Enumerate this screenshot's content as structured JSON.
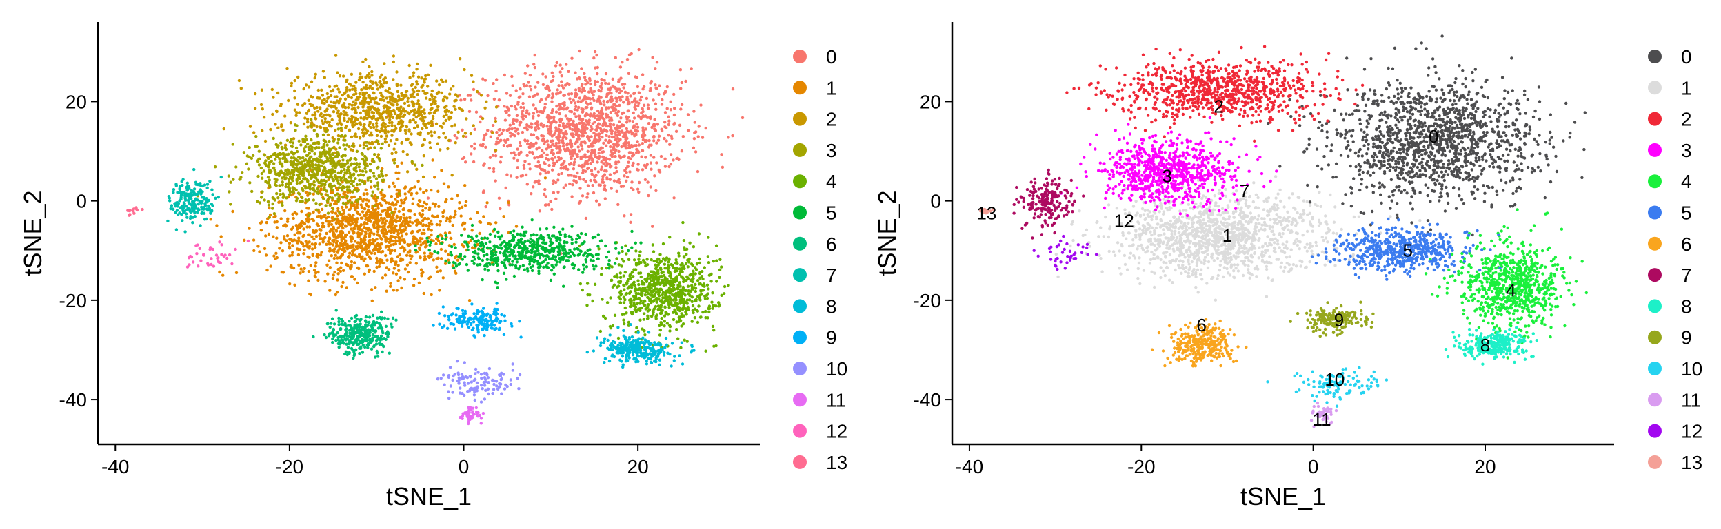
{
  "chart_data": [
    {
      "type": "scatter",
      "title": "",
      "xlabel": "tSNE_1",
      "ylabel": "tSNE_2",
      "xlim": [
        -42,
        34
      ],
      "ylim": [
        -49,
        36
      ],
      "x_ticks": [
        -40,
        -20,
        0,
        20
      ],
      "y_ticks": [
        20,
        0,
        -20,
        -40
      ],
      "legend": {
        "position": "right"
      },
      "show_cluster_labels": false,
      "series": [
        {
          "name": "0",
          "color": "#F8766D",
          "centroid": [
            14,
            14
          ],
          "spread": [
            7.5,
            8.5
          ],
          "points": 1400
        },
        {
          "name": "1",
          "color": "#E58700",
          "centroid": [
            -11,
            -6
          ],
          "spread": [
            7.5,
            6.5
          ],
          "points": 1300
        },
        {
          "name": "2",
          "color": "#C99800",
          "centroid": [
            -10,
            18
          ],
          "spread": [
            7,
            5
          ],
          "points": 850
        },
        {
          "name": "3",
          "color": "#A3A500",
          "centroid": [
            -17,
            6
          ],
          "spread": [
            5,
            4.5
          ],
          "points": 750
        },
        {
          "name": "4",
          "color": "#6BB100",
          "centroid": [
            23,
            -18
          ],
          "spread": [
            4,
            5.5
          ],
          "points": 750
        },
        {
          "name": "5",
          "color": "#00BA38",
          "centroid": [
            7,
            -10
          ],
          "spread": [
            6,
            2.8
          ],
          "points": 550
        },
        {
          "name": "6",
          "color": "#00BF7D",
          "centroid": [
            -12,
            -27
          ],
          "spread": [
            2.4,
            2.6
          ],
          "points": 300
        },
        {
          "name": "7",
          "color": "#00C0AF",
          "centroid": [
            -31,
            0
          ],
          "spread": [
            1.8,
            3
          ],
          "points": 200
        },
        {
          "name": "8",
          "color": "#00BCD8",
          "centroid": [
            20,
            -30
          ],
          "spread": [
            2.6,
            1.8
          ],
          "points": 280
        },
        {
          "name": "9",
          "color": "#00B0F6",
          "centroid": [
            1.5,
            -24
          ],
          "spread": [
            2.5,
            1.6
          ],
          "points": 170
        },
        {
          "name": "10",
          "color": "#9590FF",
          "centroid": [
            2,
            -37
          ],
          "spread": [
            3,
            2
          ],
          "points": 110
        },
        {
          "name": "11",
          "color": "#E76BF3",
          "centroid": [
            0.8,
            -43
          ],
          "spread": [
            0.8,
            1.3
          ],
          "points": 45
        },
        {
          "name": "12",
          "color": "#FF62BC",
          "centroid": [
            -29,
            -11
          ],
          "spread": [
            2,
            2
          ],
          "points": 40
        },
        {
          "name": "13",
          "color": "#FF6C91",
          "centroid": [
            -38,
            -2
          ],
          "spread": [
            0.6,
            0.4
          ],
          "points": 12
        }
      ]
    },
    {
      "type": "scatter",
      "title": "",
      "xlabel": "tSNE_1",
      "ylabel": "tSNE_2",
      "xlim": [
        -42,
        35
      ],
      "ylim": [
        -49,
        36
      ],
      "x_ticks": [
        -40,
        -20,
        0,
        20
      ],
      "y_ticks": [
        20,
        0,
        -20,
        -40
      ],
      "legend": {
        "position": "right"
      },
      "show_cluster_labels": true,
      "series": [
        {
          "name": "0",
          "color": "#4D4D4F",
          "centroid": [
            14,
            12
          ],
          "spread": [
            8,
            8
          ],
          "points": 1400
        },
        {
          "name": "1",
          "color": "#DCDCDC",
          "centroid": [
            -11,
            -7
          ],
          "spread": [
            8.5,
            5.5
          ],
          "points": 1300
        },
        {
          "name": "2",
          "color": "#F02837",
          "centroid": [
            -11,
            22
          ],
          "spread": [
            8,
            4
          ],
          "points": 850
        },
        {
          "name": "3",
          "color": "#FF00FF",
          "centroid": [
            -17,
            6
          ],
          "spread": [
            5,
            4.5
          ],
          "points": 750
        },
        {
          "name": "4",
          "color": "#1AF03C",
          "centroid": [
            23,
            -17
          ],
          "spread": [
            4,
            5.5
          ],
          "points": 750
        },
        {
          "name": "5",
          "color": "#3B7CF0",
          "centroid": [
            10,
            -10
          ],
          "spread": [
            5,
            3
          ],
          "points": 550
        },
        {
          "name": "6",
          "color": "#F9A51E",
          "centroid": [
            -13,
            -29
          ],
          "spread": [
            2.4,
            2.6
          ],
          "points": 300
        },
        {
          "name": "7",
          "color": "#AD0A60",
          "centroid": [
            -31,
            0
          ],
          "spread": [
            2,
            3
          ],
          "points": 200
        },
        {
          "name": "8",
          "color": "#1DF0C8",
          "centroid": [
            21,
            -29
          ],
          "spread": [
            2.6,
            1.8
          ],
          "points": 280
        },
        {
          "name": "9",
          "color": "#96A71C",
          "centroid": [
            2.5,
            -24
          ],
          "spread": [
            2.5,
            1.6
          ],
          "points": 170
        },
        {
          "name": "10",
          "color": "#26D3F0",
          "centroid": [
            2.5,
            -37
          ],
          "spread": [
            3,
            2
          ],
          "points": 110
        },
        {
          "name": "11",
          "color": "#D99CF0",
          "centroid": [
            1,
            -43
          ],
          "spread": [
            0.8,
            1.3
          ],
          "points": 45
        },
        {
          "name": "12",
          "color": "#A207F0",
          "centroid": [
            -29,
            -11
          ],
          "spread": [
            2,
            2
          ],
          "points": 40
        },
        {
          "name": "13",
          "color": "#F4A097",
          "centroid": [
            -38,
            -2
          ],
          "spread": [
            0.6,
            0.4
          ],
          "points": 12
        }
      ],
      "cluster_labels": [
        {
          "text": "0",
          "x": 14,
          "y": 13
        },
        {
          "text": "1",
          "x": -10,
          "y": -7
        },
        {
          "text": "2",
          "x": -11,
          "y": 19
        },
        {
          "text": "3",
          "x": -17,
          "y": 5
        },
        {
          "text": "4",
          "x": 23,
          "y": -18
        },
        {
          "text": "5",
          "x": 11,
          "y": -10
        },
        {
          "text": "6",
          "x": -13,
          "y": -25
        },
        {
          "text": "7",
          "x": -8,
          "y": 2
        },
        {
          "text": "8",
          "x": 20,
          "y": -29
        },
        {
          "text": "9",
          "x": 3,
          "y": -24
        },
        {
          "text": "10",
          "x": 2.5,
          "y": -36
        },
        {
          "text": "11",
          "x": 1,
          "y": -44
        },
        {
          "text": "12",
          "x": -22,
          "y": -4
        },
        {
          "text": "13",
          "x": -38,
          "y": -2.5
        }
      ]
    }
  ]
}
